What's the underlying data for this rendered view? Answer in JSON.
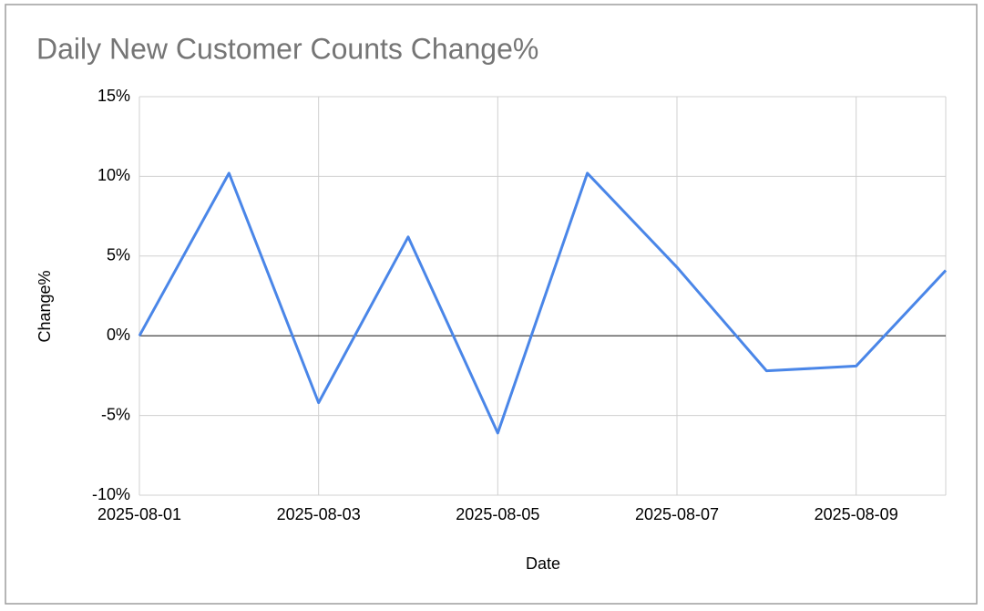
{
  "chart_data": {
    "type": "line",
    "title": "Daily New Customer Counts Change%",
    "x_label": "Date",
    "y_label": "Change%",
    "x": [
      "2025-08-01",
      "2025-08-02",
      "2025-08-03",
      "2025-08-04",
      "2025-08-05",
      "2025-08-06",
      "2025-08-07",
      "2025-08-08",
      "2025-08-09",
      "2025-08-10"
    ],
    "series": [
      {
        "name": "Change%",
        "color": "#4a86e8",
        "values": [
          0,
          10.2,
          -4.2,
          6.2,
          -6.1,
          10.2,
          4.3,
          -2.2,
          -1.9,
          4.1
        ]
      }
    ],
    "xlim": [
      "2025-08-01",
      "2025-08-10"
    ],
    "xticks": [
      "2025-08-01",
      "2025-08-03",
      "2025-08-05",
      "2025-08-07",
      "2025-08-09"
    ],
    "ylim": [
      -10,
      15
    ],
    "yticks": [
      {
        "value": -10,
        "label": "-10%"
      },
      {
        "value": -5,
        "label": "-5%"
      },
      {
        "value": 0,
        "label": "0%"
      },
      {
        "value": 5,
        "label": "5%"
      },
      {
        "value": 10,
        "label": "10%"
      },
      {
        "value": 15,
        "label": "15%"
      }
    ],
    "grid": true
  }
}
